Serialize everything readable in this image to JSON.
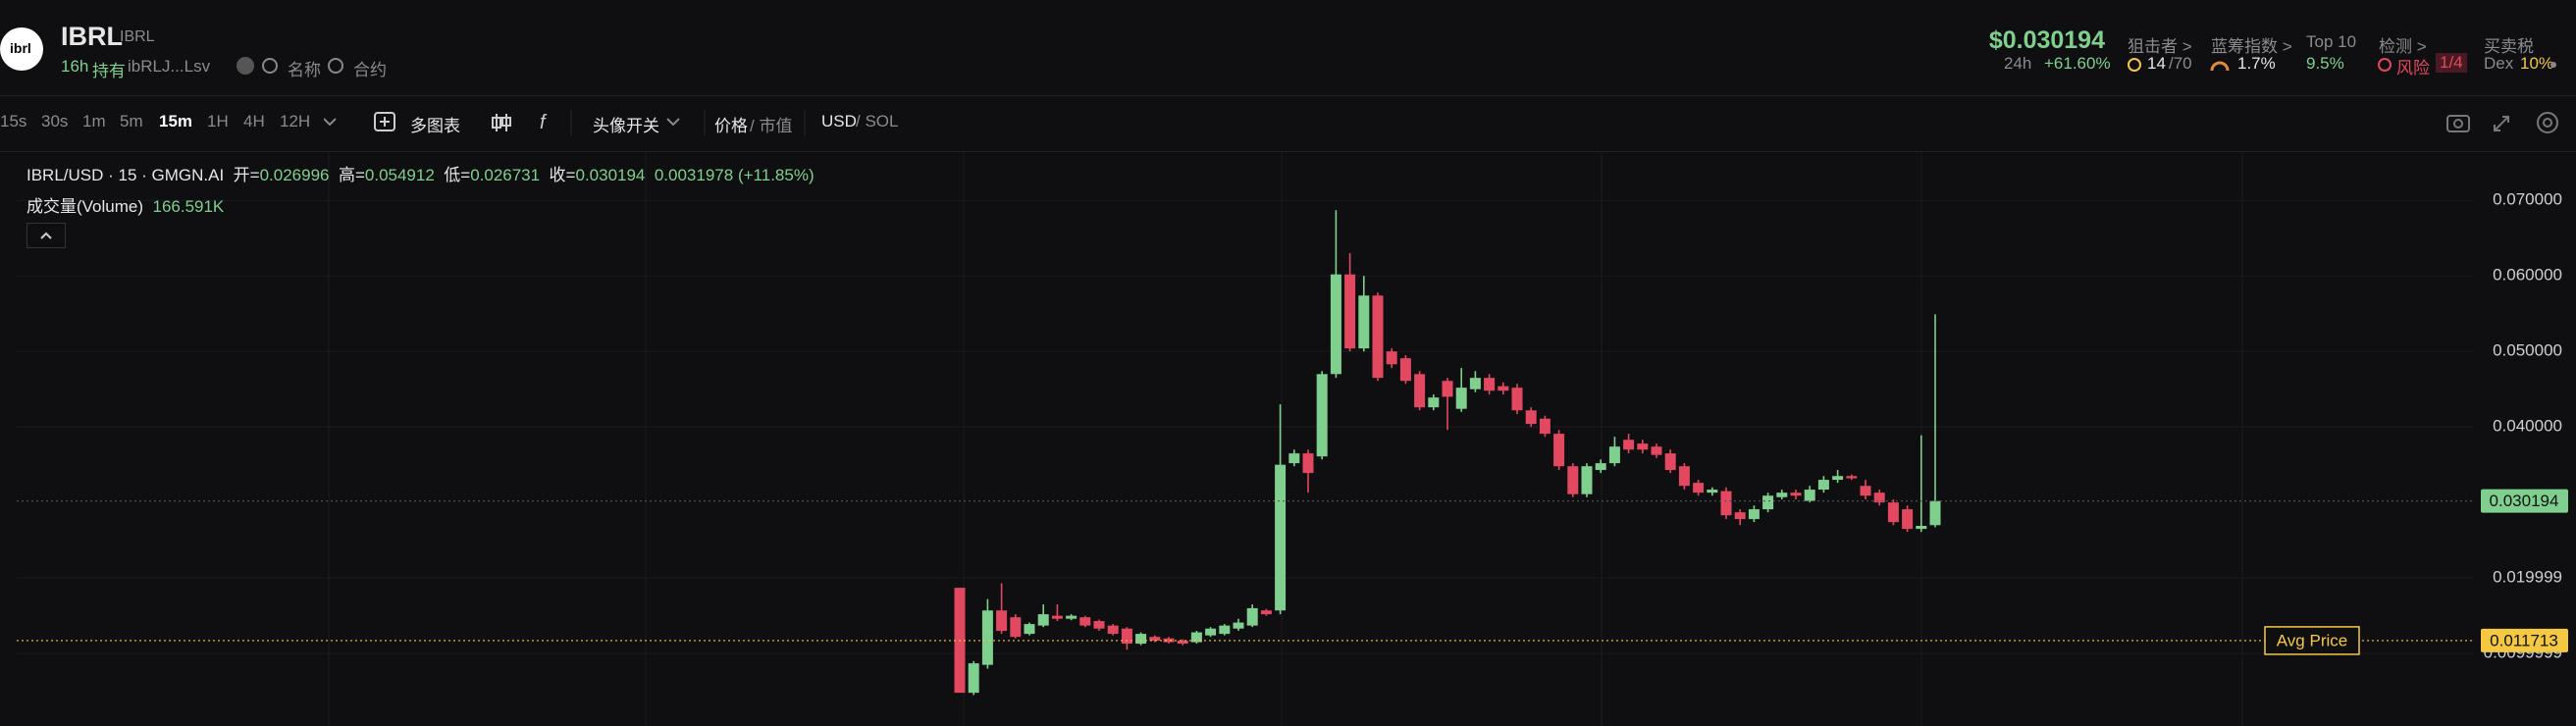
{
  "header": {
    "logo": "ibrl",
    "symbol": "IBRL",
    "ticker": "IBRL",
    "age": "16h",
    "holders_label": "持有",
    "address": "ibRLJ...Lsv",
    "search_name": "名称",
    "search_contract": "合约",
    "price": "$0.030194",
    "change_period": "24h",
    "change": "+61.60%",
    "stats": [
      {
        "label": "狙击者 >",
        "value": "14",
        "total": "/70"
      },
      {
        "label": "蓝筹指数 >",
        "value": "1.7%"
      },
      {
        "label": "Top 10",
        "value": "9.5%"
      },
      {
        "label": "检测 >",
        "value": "风险",
        "badge": "1/4"
      },
      {
        "label": "买卖税",
        "value": "Dex",
        "extra": "10%"
      }
    ]
  },
  "toolbar": {
    "intervals": [
      "15s",
      "30s",
      "1m",
      "5m",
      "15m",
      "1H",
      "4H",
      "12H"
    ],
    "active_index": 4,
    "multi_chart": "多图表",
    "avatar_toggle": "头像开关",
    "price": "价格",
    "market_cap": "/ 市值",
    "usd": "USD",
    "sol": "/ SOL"
  },
  "legend": {
    "title": "IBRL/USD · 15 · GMGN.AI",
    "open_label": "开=",
    "open": "0.026996",
    "high_label": "高=",
    "high": "0.054912",
    "low_label": "低=",
    "low": "0.026731",
    "close_label": "收=",
    "close": "0.030194",
    "change": "0.0031978",
    "change_pct": "(+11.85%)",
    "volume_label": "成交量(Volume)",
    "volume": "166.591K"
  },
  "chart_data": {
    "type": "candlestick",
    "up_color": "#7fd08f",
    "down_color": "#e2485f",
    "ylim": [
      0.0004,
      0.0764
    ],
    "yticks": [
      {
        "value": 0.07,
        "label": "0.070000"
      },
      {
        "value": 0.06,
        "label": "0.060000"
      },
      {
        "value": 0.05,
        "label": "0.050000"
      },
      {
        "value": 0.04,
        "label": "0.040000"
      },
      0.019999,
      0.0099999
    ],
    "grid": true,
    "open": [
      0.0187,
      0.0048,
      0.0085,
      0.0157,
      0.0148,
      0.0126,
      0.0137,
      0.015,
      0.0146,
      0.0148,
      0.0143,
      0.0137,
      0.0133,
      0.0113,
      0.0122,
      0.012,
      0.0117,
      0.0115,
      0.0124,
      0.0126,
      0.0133,
      0.0137,
      0.0157,
      0.0157,
      0.0352,
      0.0365,
      0.0361,
      0.047,
      0.0602,
      0.0504,
      0.0574,
      0.05,
      0.0491,
      0.047,
      0.0426,
      0.0461,
      0.0424,
      0.045,
      0.0465,
      0.0454,
      0.0452,
      0.0422,
      0.0411,
      0.0391,
      0.0348,
      0.0311,
      0.0343,
      0.0352,
      0.0383,
      0.0378,
      0.0374,
      0.0365,
      0.0348,
      0.0326,
      0.0313,
      0.0315,
      0.0287,
      0.0278,
      0.0291,
      0.0307,
      0.0313,
      0.0302,
      0.0317,
      0.033,
      0.0335,
      0.0322,
      0.0313,
      0.03,
      0.0291,
      0.0265,
      0.026996
    ],
    "high": [
      0.0187,
      0.009,
      0.0172,
      0.0193,
      0.0152,
      0.0141,
      0.0165,
      0.0165,
      0.0152,
      0.015,
      0.0145,
      0.0139,
      0.0135,
      0.0128,
      0.0124,
      0.0122,
      0.0119,
      0.013,
      0.0135,
      0.0139,
      0.0146,
      0.0165,
      0.0159,
      0.043,
      0.037,
      0.037,
      0.0474,
      0.0687,
      0.063,
      0.06,
      0.0578,
      0.0504,
      0.0495,
      0.0474,
      0.0443,
      0.0465,
      0.0478,
      0.0474,
      0.047,
      0.0459,
      0.0457,
      0.0426,
      0.0415,
      0.0396,
      0.0352,
      0.0352,
      0.0357,
      0.0387,
      0.0391,
      0.0383,
      0.0378,
      0.037,
      0.0352,
      0.033,
      0.032,
      0.032,
      0.0291,
      0.0296,
      0.0313,
      0.0317,
      0.0317,
      0.0322,
      0.0335,
      0.0343,
      0.0337,
      0.033,
      0.0317,
      0.0304,
      0.0296,
      0.0389,
      0.054912
    ],
    "low": [
      0.0048,
      0.0045,
      0.008,
      0.0126,
      0.012,
      0.0124,
      0.0135,
      0.0143,
      0.0144,
      0.0135,
      0.013,
      0.0124,
      0.0105,
      0.0111,
      0.0115,
      0.0113,
      0.0111,
      0.0113,
      0.0122,
      0.0124,
      0.013,
      0.0135,
      0.015,
      0.0152,
      0.0348,
      0.0313,
      0.0357,
      0.0465,
      0.05,
      0.05,
      0.0461,
      0.0478,
      0.0457,
      0.0422,
      0.0422,
      0.0396,
      0.042,
      0.0446,
      0.0443,
      0.0443,
      0.0417,
      0.04,
      0.0387,
      0.0343,
      0.0307,
      0.0307,
      0.0339,
      0.0348,
      0.0365,
      0.0365,
      0.0359,
      0.0339,
      0.0317,
      0.0309,
      0.0309,
      0.0278,
      0.027,
      0.0274,
      0.0287,
      0.0304,
      0.0304,
      0.03,
      0.0313,
      0.0326,
      0.033,
      0.0304,
      0.0296,
      0.027,
      0.0261,
      0.0261,
      0.026731
    ],
    "close": [
      0.0048,
      0.0087,
      0.0157,
      0.013,
      0.0122,
      0.0139,
      0.0152,
      0.0146,
      0.015,
      0.0137,
      0.0133,
      0.0126,
      0.0113,
      0.0126,
      0.0117,
      0.0115,
      0.0113,
      0.0128,
      0.0133,
      0.0137,
      0.0141,
      0.016,
      0.0152,
      0.035,
      0.0365,
      0.0339,
      0.047,
      0.0602,
      0.0504,
      0.0574,
      0.0465,
      0.0483,
      0.0461,
      0.0426,
      0.0439,
      0.044,
      0.0452,
      0.0465,
      0.0448,
      0.0448,
      0.0422,
      0.0404,
      0.0391,
      0.0348,
      0.0311,
      0.0348,
      0.0352,
      0.0374,
      0.037,
      0.037,
      0.0363,
      0.0343,
      0.0322,
      0.0313,
      0.0317,
      0.0283,
      0.0278,
      0.0291,
      0.0309,
      0.0313,
      0.0309,
      0.0317,
      0.033,
      0.0335,
      0.0332,
      0.0309,
      0.03,
      0.0274,
      0.0265,
      0.0269,
      0.030194
    ],
    "reference_lines": [
      {
        "value": 0.030194,
        "color": "#7fd08f"
      },
      {
        "name": "Avg Price",
        "value": 0.011713,
        "color": "#f5c842"
      }
    ]
  }
}
